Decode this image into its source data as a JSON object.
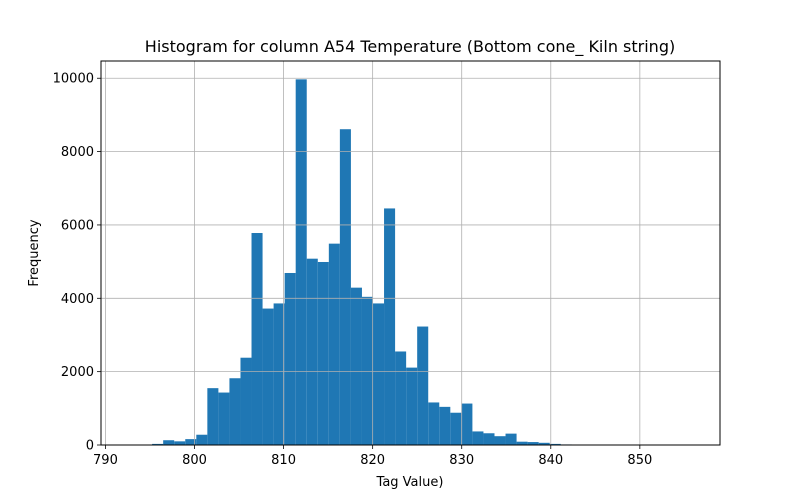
{
  "chart_data": {
    "type": "bar",
    "title": "Histogram for column A54 Temperature (Bottom cone_ Kiln string)",
    "xlabel": "Tag Value)",
    "ylabel": "Frequency",
    "xlim": [
      789.5,
      859
    ],
    "ylim": [
      0,
      10470
    ],
    "xticks": [
      790,
      800,
      810,
      820,
      830,
      840,
      850
    ],
    "yticks": [
      0,
      2000,
      4000,
      6000,
      8000,
      10000
    ],
    "grid": true,
    "bar_color": "#1f77b4",
    "bin_edges": [
      794.0,
      795.24,
      796.48,
      797.72,
      798.96,
      800.2,
      801.44,
      802.68,
      803.92,
      805.16,
      806.4,
      807.64,
      808.88,
      810.12,
      811.36,
      812.6,
      813.84,
      815.08,
      816.32,
      817.56,
      818.8,
      820.04,
      821.28,
      822.52,
      823.76,
      825.0,
      826.24,
      827.48,
      828.72,
      829.96,
      831.2,
      832.44,
      833.68,
      834.92,
      836.16,
      837.4,
      838.64,
      839.88,
      841.12,
      842.36,
      843.6,
      844.84,
      846.08,
      847.32,
      848.56,
      849.8,
      851.04,
      852.28,
      853.52,
      854.76,
      856.0
    ],
    "counts": [
      10,
      30,
      130,
      100,
      160,
      280,
      1550,
      1430,
      1820,
      2380,
      5780,
      3720,
      3860,
      4690,
      9970,
      5080,
      4990,
      5490,
      8610,
      4290,
      4040,
      3860,
      6450,
      2550,
      2110,
      3230,
      1160,
      1040,
      880,
      1130,
      370,
      320,
      240,
      310,
      90,
      80,
      60,
      30,
      15,
      10,
      5,
      3,
      2,
      1,
      1,
      0,
      0,
      0,
      0,
      1
    ]
  }
}
